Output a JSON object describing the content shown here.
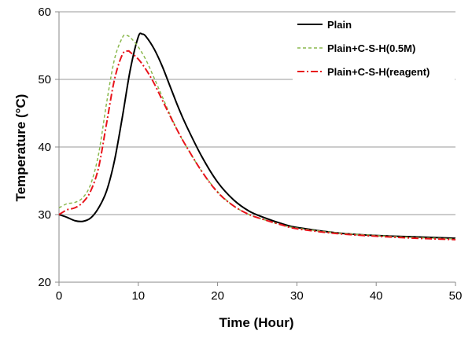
{
  "chart_data": {
    "type": "line",
    "xlabel": "Time (Hour)",
    "ylabel": "Temperature (°C)",
    "xlim": [
      0,
      50
    ],
    "ylim": [
      20,
      60
    ],
    "x_ticks": [
      0,
      10,
      20,
      30,
      40,
      50
    ],
    "y_ticks": [
      20,
      30,
      40,
      50,
      60
    ],
    "grid": "horizontal",
    "legend_position": "top-right",
    "series": [
      {
        "name": "Plain",
        "color": "#000000",
        "dash": "solid",
        "points": [
          [
            0,
            30
          ],
          [
            1,
            29.6
          ],
          [
            2,
            29.1
          ],
          [
            3,
            29.0
          ],
          [
            4,
            29.5
          ],
          [
            5,
            31
          ],
          [
            6,
            33.5
          ],
          [
            7,
            38
          ],
          [
            8,
            44.5
          ],
          [
            9,
            51.5
          ],
          [
            10,
            56.3
          ],
          [
            10.5,
            56.7
          ],
          [
            11,
            56.3
          ],
          [
            12,
            54.5
          ],
          [
            13,
            52
          ],
          [
            14,
            49
          ],
          [
            15,
            46
          ],
          [
            16,
            43.3
          ],
          [
            18,
            38.6
          ],
          [
            20,
            34.8
          ],
          [
            22,
            32.2
          ],
          [
            24,
            30.5
          ],
          [
            26,
            29.5
          ],
          [
            28,
            28.7
          ],
          [
            30,
            28.1
          ],
          [
            35,
            27.3
          ],
          [
            40,
            26.9
          ],
          [
            45,
            26.7
          ],
          [
            50,
            26.5
          ]
        ]
      },
      {
        "name": "Plain+C-S-H(0.5M)",
        "color": "#8ab84d",
        "dash": "dashed",
        "points": [
          [
            0,
            31
          ],
          [
            1,
            31.6
          ],
          [
            2,
            31.8
          ],
          [
            3,
            32.5
          ],
          [
            4,
            34.5
          ],
          [
            5,
            39
          ],
          [
            6,
            46.5
          ],
          [
            7,
            53
          ],
          [
            8,
            56.2
          ],
          [
            8.5,
            56.5
          ],
          [
            9,
            56.2
          ],
          [
            10,
            54.8
          ],
          [
            11,
            52.8
          ],
          [
            12,
            50.2
          ],
          [
            13,
            47.5
          ],
          [
            14,
            44.8
          ],
          [
            15,
            42.3
          ],
          [
            16,
            40.2
          ],
          [
            18,
            36.4
          ],
          [
            20,
            33.4
          ],
          [
            22,
            31.3
          ],
          [
            24,
            30.0
          ],
          [
            26,
            29.2
          ],
          [
            28,
            28.5
          ],
          [
            30,
            28.0
          ],
          [
            35,
            27.3
          ],
          [
            40,
            26.9
          ],
          [
            45,
            26.6
          ],
          [
            50,
            26.4
          ]
        ]
      },
      {
        "name": "Plain+C-S-H(reagent)",
        "color": "#e8141b",
        "dash": "dashdot",
        "points": [
          [
            0,
            30
          ],
          [
            1,
            30.7
          ],
          [
            2,
            31
          ],
          [
            3,
            31.8
          ],
          [
            4,
            33.5
          ],
          [
            5,
            37
          ],
          [
            6,
            43.5
          ],
          [
            7,
            50
          ],
          [
            8,
            53.7
          ],
          [
            8.7,
            54.2
          ],
          [
            9,
            54
          ],
          [
            10,
            53
          ],
          [
            11,
            51.4
          ],
          [
            12,
            49.4
          ],
          [
            13,
            47
          ],
          [
            14,
            44.6
          ],
          [
            15,
            42.3
          ],
          [
            16,
            40.2
          ],
          [
            18,
            36.4
          ],
          [
            20,
            33.3
          ],
          [
            22,
            31.3
          ],
          [
            24,
            30.0
          ],
          [
            26,
            29.2
          ],
          [
            28,
            28.5
          ],
          [
            30,
            27.9
          ],
          [
            35,
            27.2
          ],
          [
            40,
            26.8
          ],
          [
            45,
            26.5
          ],
          [
            50,
            26.3
          ]
        ]
      }
    ]
  }
}
